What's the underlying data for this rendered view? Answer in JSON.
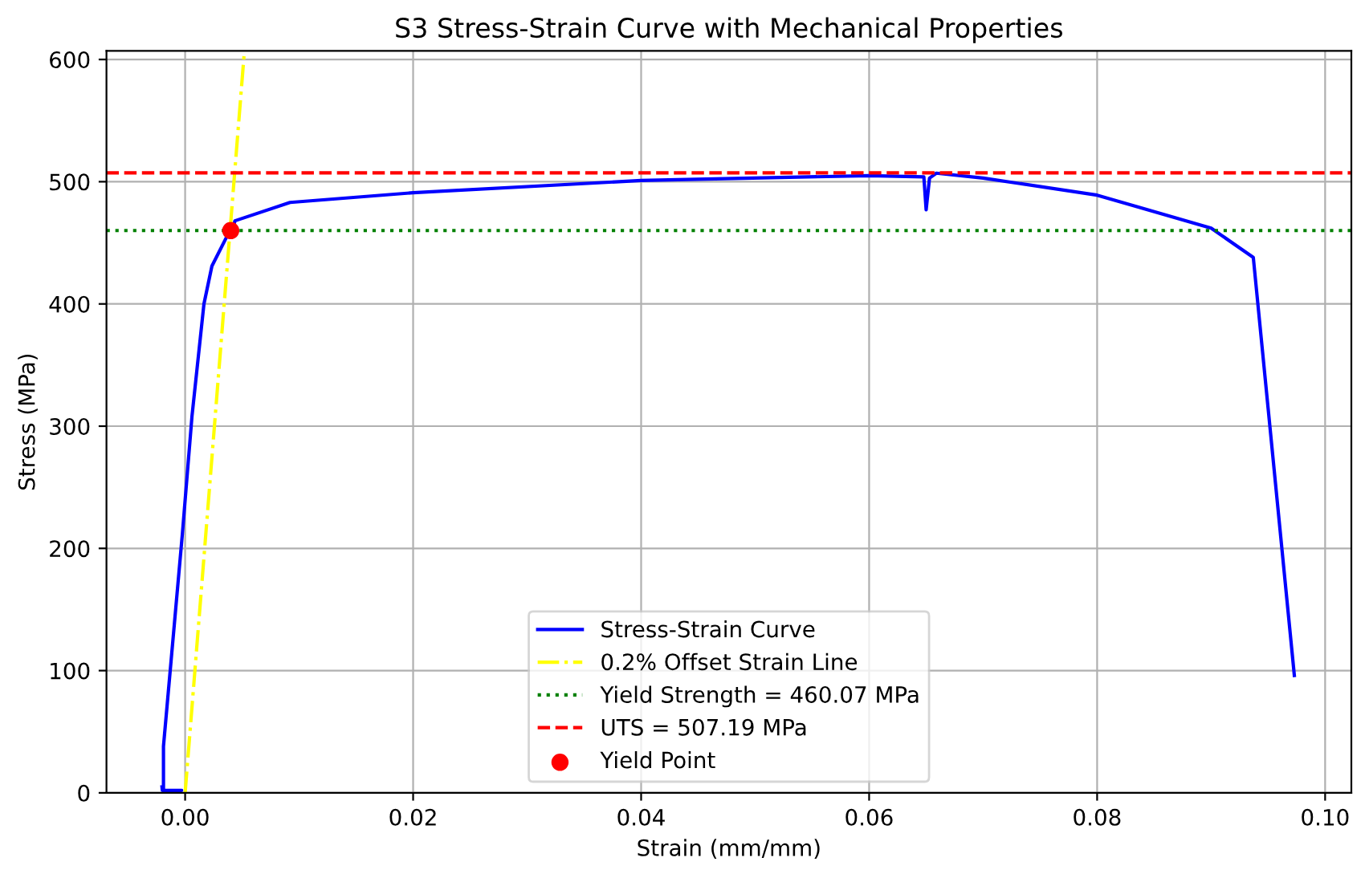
{
  "chart_data": {
    "type": "line",
    "title": "S3 Stress-Strain Curve with Mechanical Properties",
    "xlabel": "Strain (mm/mm)",
    "ylabel": "Stress (MPa)",
    "xlim": [
      -0.0069,
      0.1023
    ],
    "ylim": [
      0,
      607
    ],
    "xticks": [
      {
        "value": 0,
        "label": "0.00"
      },
      {
        "value": 0.02,
        "label": "0.02"
      },
      {
        "value": 0.04,
        "label": "0.04"
      },
      {
        "value": 0.06,
        "label": "0.06"
      },
      {
        "value": 0.08,
        "label": "0.08"
      },
      {
        "value": 0.1,
        "label": "0.10"
      }
    ],
    "yticks": [
      0,
      100,
      200,
      300,
      400,
      500,
      600
    ],
    "grid": true,
    "legend": "bottom",
    "series": [
      {
        "name": "Stress-Strain Curve",
        "color": "#0000ff",
        "line_style": "solid",
        "x": [
          -0.00203,
          -0.002,
          -0.0003,
          -0.0019,
          -0.0019,
          -0.00024,
          0.0006,
          0.00165,
          0.00235,
          0.00376,
          0.004,
          0.00437,
          0.0092,
          0.02,
          0.04,
          0.06,
          0.0648,
          0.065,
          0.0653,
          0.0659,
          0.07,
          0.08,
          0.09,
          0.0937,
          0.0973
        ],
        "values": [
          5,
          2,
          2,
          2,
          38,
          212,
          308,
          400,
          431,
          457,
          455,
          468,
          483,
          491,
          501,
          505,
          504,
          477,
          503,
          507,
          503,
          489,
          462,
          438,
          96
        ]
      },
      {
        "name": "0.2% Offset Strain Line",
        "type": "line",
        "color": "#ffff00",
        "line_style": "dashdot",
        "x": [
          0.0,
          0.0052
        ],
        "values": [
          0,
          607
        ]
      },
      {
        "name": "Yield Point",
        "type": "scatter",
        "color": "#ff0000",
        "marker": "circle",
        "x": [
          0.004
        ],
        "values": [
          460
        ]
      }
    ],
    "ref_lines": [
      {
        "axis": "y",
        "value": 460.07,
        "label": "Yield Strength = 460.07 MPa",
        "color": "#008000",
        "line_style": "dotted"
      },
      {
        "axis": "y",
        "value": 507.19,
        "label": "UTS = 507.19 MPa",
        "color": "#ff0000",
        "line_style": "dashed"
      }
    ]
  }
}
